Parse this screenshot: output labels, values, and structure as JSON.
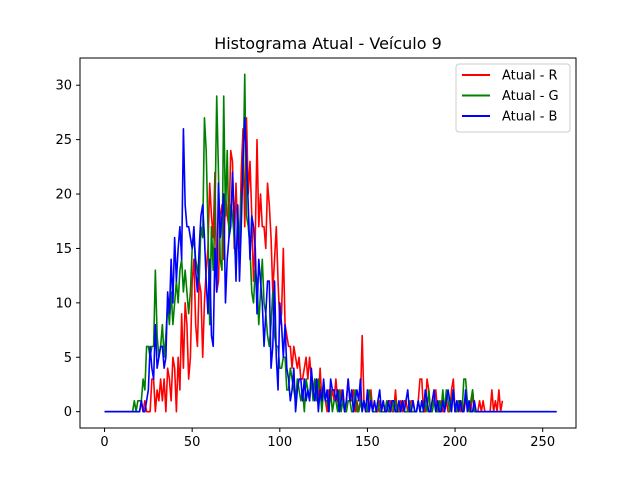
{
  "chart_data": {
    "type": "line",
    "title": "Histograma Atual - Veículo 9",
    "xlabel": "",
    "ylabel": "",
    "xlim": [
      -14,
      269
    ],
    "ylim": [
      -1.5,
      32.5
    ],
    "x_ticks": [
      0,
      50,
      100,
      150,
      200,
      250
    ],
    "y_ticks": [
      0,
      5,
      10,
      15,
      20,
      25,
      30
    ],
    "grid": false,
    "legend_position": "top-right",
    "x_start": 0,
    "series": [
      {
        "name": "Atual - R",
        "color": "#ff0000",
        "values": [
          0,
          0,
          0,
          0,
          0,
          0,
          0,
          0,
          0,
          0,
          0,
          0,
          0,
          0,
          0,
          0,
          0,
          0,
          0,
          0,
          0,
          1,
          0,
          1,
          0,
          0,
          0,
          3,
          3,
          0,
          2,
          1,
          3,
          1,
          3,
          0,
          4,
          3,
          1,
          5,
          4,
          0,
          5,
          2,
          9,
          4,
          10,
          8,
          3,
          5,
          12,
          14,
          8,
          6,
          12,
          11,
          5,
          10,
          13,
          15,
          21,
          18,
          16,
          22,
          11,
          12,
          18,
          19,
          14,
          20,
          18,
          17,
          24,
          23,
          15,
          21,
          16,
          15,
          22,
          26,
          17,
          27,
          20,
          23,
          18,
          12,
          16,
          25,
          17,
          20,
          17,
          17,
          15,
          21,
          19,
          16,
          11,
          14,
          17,
          12,
          8,
          9,
          15,
          8,
          7,
          6,
          6,
          4,
          6,
          5,
          4,
          5,
          3,
          3,
          4,
          5,
          3,
          5,
          3,
          2,
          3,
          2,
          1,
          4,
          1,
          2,
          1,
          0,
          2,
          1,
          2,
          1,
          3,
          1,
          0,
          2,
          1,
          0,
          1,
          3,
          1,
          1,
          2,
          0,
          1,
          0,
          1,
          7,
          1,
          0,
          0,
          0,
          2,
          0,
          0,
          0,
          0,
          1,
          0,
          1,
          0,
          0,
          1,
          1,
          0,
          0,
          2,
          0,
          0,
          1,
          0,
          1,
          1,
          0,
          0,
          1,
          1,
          0,
          0,
          1,
          3,
          3,
          0,
          0,
          3,
          2,
          0,
          1,
          1,
          2,
          0,
          0,
          1,
          0,
          0,
          1,
          0,
          0,
          2,
          3,
          0,
          0,
          1,
          0,
          1,
          0,
          1,
          1,
          0,
          0,
          2,
          0,
          0,
          0,
          1,
          0,
          1,
          0,
          0,
          0,
          0,
          2,
          0,
          1,
          0,
          2,
          0,
          1
        ]
      },
      {
        "name": "Atual - G",
        "color": "#008000",
        "values": [
          0,
          0,
          0,
          0,
          0,
          0,
          0,
          0,
          0,
          0,
          0,
          0,
          0,
          0,
          0,
          0,
          0,
          1,
          0,
          1,
          1,
          1,
          3,
          2,
          6,
          6,
          5,
          6,
          6,
          13,
          7,
          5,
          6,
          8,
          5,
          7,
          10,
          8,
          11,
          8,
          10,
          12,
          10,
          13,
          14,
          11,
          13,
          11,
          9,
          11,
          15,
          16,
          14,
          13,
          12,
          17,
          16,
          27,
          24,
          17,
          8,
          17,
          13,
          18,
          29,
          22,
          14,
          13,
          29,
          18,
          24,
          16,
          19,
          18,
          16,
          13,
          17,
          16,
          20,
          21,
          31,
          18,
          17,
          15,
          11,
          10,
          13,
          12,
          8,
          11,
          14,
          10,
          9,
          7,
          6,
          8,
          11,
          7,
          6,
          6,
          4,
          4,
          5,
          5,
          2,
          2,
          4,
          3,
          2,
          1,
          3,
          2,
          1,
          2,
          0,
          3,
          2,
          1,
          3,
          1,
          3,
          1,
          3,
          2,
          0,
          2,
          1,
          1,
          0,
          2,
          0,
          1,
          1,
          0,
          2,
          0,
          1,
          0,
          0,
          1,
          1,
          0,
          0,
          2,
          0,
          0,
          1,
          0,
          1,
          0,
          0,
          2,
          1,
          0,
          0,
          0,
          1,
          0,
          0,
          0,
          0,
          1,
          0,
          0,
          1,
          0,
          1,
          0,
          0,
          0,
          1,
          0,
          0,
          0,
          1,
          0,
          0,
          0,
          0,
          1,
          0,
          0,
          0,
          1,
          0,
          2,
          0,
          0,
          1,
          0,
          0,
          1,
          0,
          2,
          0,
          2,
          1,
          0,
          1,
          2,
          0,
          0,
          1,
          1,
          0,
          3,
          3,
          1,
          0,
          1,
          2,
          0,
          0,
          0,
          0,
          0,
          0,
          0,
          0,
          0,
          0,
          0,
          0,
          0,
          0,
          0,
          0,
          0,
          0,
          0,
          0,
          0,
          0,
          0,
          0,
          0,
          0,
          0,
          0,
          0,
          0,
          0,
          0,
          0,
          0,
          0,
          0,
          0,
          0,
          0,
          0,
          0,
          0,
          0,
          0
        ]
      },
      {
        "name": "Atual - B",
        "color": "#0000ff",
        "values": [
          0,
          0,
          0,
          0,
          0,
          0,
          0,
          0,
          0,
          0,
          0,
          0,
          0,
          0,
          0,
          0,
          0,
          0,
          0,
          0,
          0,
          1,
          0,
          0,
          1,
          2,
          6,
          4,
          3,
          8,
          4,
          5,
          6,
          6,
          4,
          5,
          11,
          9,
          14,
          10,
          16,
          12,
          15,
          17,
          14,
          26,
          19,
          17,
          17,
          16,
          15,
          17,
          13,
          11,
          15,
          18,
          19,
          16,
          12,
          9,
          14,
          7,
          6,
          15,
          11,
          21,
          16,
          18,
          20,
          10,
          14,
          16,
          17,
          22,
          18,
          12,
          19,
          12,
          17,
          23,
          27,
          23,
          19,
          14,
          18,
          17,
          15,
          9,
          14,
          12,
          10,
          6,
          9,
          12,
          12,
          4,
          6,
          12,
          5,
          2,
          10,
          8,
          5,
          8,
          4,
          3,
          1,
          2,
          4,
          0,
          2,
          3,
          3,
          1,
          3,
          1,
          2,
          1,
          4,
          2,
          1,
          3,
          0,
          2,
          1,
          3,
          1,
          2,
          0,
          3,
          2,
          2,
          1,
          2,
          0,
          1,
          2,
          0,
          1,
          3,
          1,
          2,
          0,
          1,
          2,
          1,
          3,
          0,
          1,
          0,
          2,
          0,
          1,
          0,
          1,
          0,
          1,
          2,
          0,
          1,
          0,
          0,
          1,
          0,
          1,
          1,
          0,
          0,
          1,
          0,
          1,
          0,
          1,
          2,
          0,
          0,
          1,
          0,
          0,
          1,
          0,
          1,
          0,
          2,
          1,
          0,
          0,
          1,
          2,
          0,
          1,
          0,
          0,
          1,
          0,
          1,
          2,
          1,
          0,
          2,
          0,
          1,
          0,
          1,
          0,
          0,
          2,
          0,
          1,
          0,
          0,
          1,
          0,
          0,
          0,
          0,
          0,
          0,
          0,
          0,
          0,
          0,
          0,
          0,
          0,
          0,
          0,
          0,
          0,
          0,
          0,
          0,
          0,
          0,
          0,
          0,
          0,
          0,
          0,
          0,
          0,
          0,
          0,
          0,
          0,
          0,
          0,
          0,
          0,
          0,
          0,
          0,
          0,
          0,
          0,
          0,
          0,
          0,
          0
        ]
      }
    ]
  }
}
